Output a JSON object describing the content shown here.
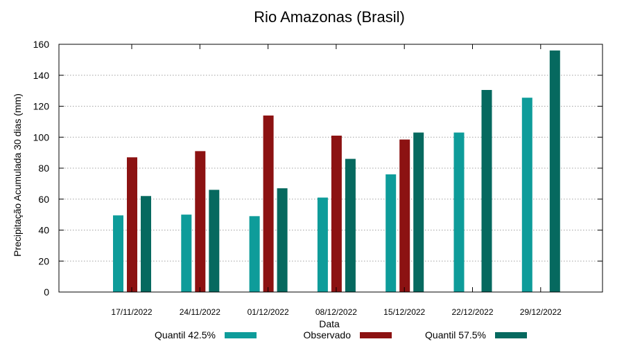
{
  "chart_data": {
    "type": "bar",
    "title": "Rio Amazonas (Brasil)",
    "xlabel": "Data",
    "ylabel": "Precipitação Acumulada 30 dias (mm)",
    "ylim": [
      0,
      160
    ],
    "yticks": [
      0,
      20,
      40,
      60,
      80,
      100,
      120,
      140,
      160
    ],
    "grid": true,
    "legend_position": "bottom",
    "categories": [
      "17/11/2022",
      "24/11/2022",
      "01/12/2022",
      "08/12/2022",
      "15/12/2022",
      "22/12/2022",
      "29/12/2022"
    ],
    "series": [
      {
        "name": "Quantil 42.5%",
        "color": "#0e9c9a",
        "values": [
          49.5,
          50,
          49,
          61,
          76,
          103,
          125.5
        ]
      },
      {
        "name": "Observado",
        "color": "#8c1212",
        "values": [
          87,
          91,
          114,
          101,
          98.5,
          null,
          null
        ]
      },
      {
        "name": "Quantil 57.5%",
        "color": "#06695f",
        "values": [
          62,
          66,
          67,
          86,
          103,
          130.5,
          156
        ]
      }
    ]
  }
}
